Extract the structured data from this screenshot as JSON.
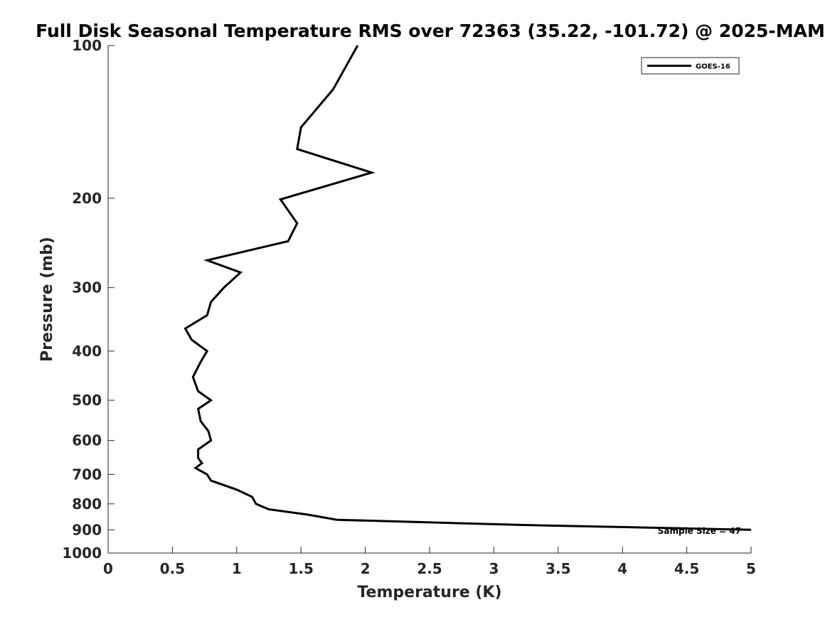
{
  "chart_data": {
    "type": "line",
    "title": "Full Disk Seasonal Temperature RMS over 72363 (35.22, -101.72) @ 2025-MAM",
    "xlabel": "Temperature (K)",
    "ylabel": "Pressure (mb)",
    "xlim": [
      0,
      5
    ],
    "ylim": [
      100,
      1000
    ],
    "yscale": "log",
    "y_reversed": true,
    "grid": false,
    "legend_position": "top-right",
    "x_ticks": [
      "0",
      "0.5",
      "1",
      "1.5",
      "2",
      "2.5",
      "3",
      "3.5",
      "4",
      "4.5",
      "5"
    ],
    "y_ticks": [
      "100",
      "200",
      "300",
      "400",
      "500",
      "600",
      "700",
      "800",
      "900",
      "1000"
    ],
    "series": [
      {
        "name": "GOES-16",
        "color": "#000000",
        "points": [
          {
            "x": 1.94,
            "y": 100
          },
          {
            "x": 1.75,
            "y": 122
          },
          {
            "x": 1.5,
            "y": 145
          },
          {
            "x": 1.47,
            "y": 160
          },
          {
            "x": 2.05,
            "y": 178
          },
          {
            "x": 1.34,
            "y": 201
          },
          {
            "x": 1.47,
            "y": 224
          },
          {
            "x": 1.4,
            "y": 243
          },
          {
            "x": 0.77,
            "y": 265
          },
          {
            "x": 1.03,
            "y": 280
          },
          {
            "x": 0.9,
            "y": 300
          },
          {
            "x": 0.8,
            "y": 320
          },
          {
            "x": 0.77,
            "y": 340
          },
          {
            "x": 0.6,
            "y": 361
          },
          {
            "x": 0.65,
            "y": 380
          },
          {
            "x": 0.77,
            "y": 400
          },
          {
            "x": 0.72,
            "y": 420
          },
          {
            "x": 0.66,
            "y": 450
          },
          {
            "x": 0.7,
            "y": 480
          },
          {
            "x": 0.8,
            "y": 500
          },
          {
            "x": 0.7,
            "y": 520
          },
          {
            "x": 0.72,
            "y": 550
          },
          {
            "x": 0.78,
            "y": 575
          },
          {
            "x": 0.8,
            "y": 600
          },
          {
            "x": 0.7,
            "y": 625
          },
          {
            "x": 0.7,
            "y": 650
          },
          {
            "x": 0.73,
            "y": 665
          },
          {
            "x": 0.68,
            "y": 680
          },
          {
            "x": 0.77,
            "y": 700
          },
          {
            "x": 0.8,
            "y": 720
          },
          {
            "x": 1.0,
            "y": 750
          },
          {
            "x": 1.12,
            "y": 775
          },
          {
            "x": 1.15,
            "y": 800
          },
          {
            "x": 1.25,
            "y": 820
          },
          {
            "x": 1.55,
            "y": 840
          },
          {
            "x": 1.78,
            "y": 860
          },
          {
            "x": 3.2,
            "y": 880
          },
          {
            "x": 5.0,
            "y": 900
          }
        ]
      }
    ],
    "annotation": "Sample Size = 47"
  }
}
